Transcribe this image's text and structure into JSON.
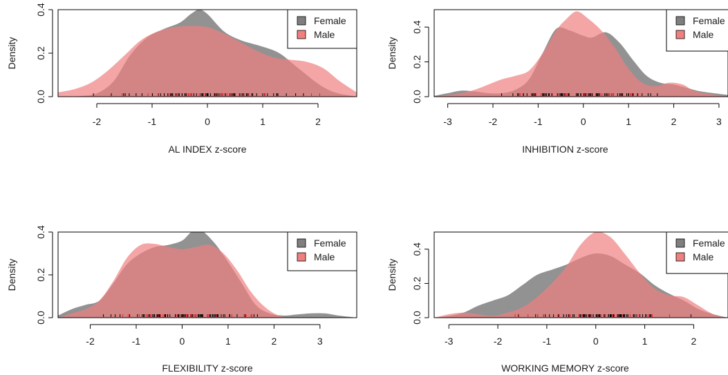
{
  "colors": {
    "female": "#7f7f7f",
    "male": "#f08080",
    "overlap": "#c0595c",
    "rug_female": "#000000",
    "rug_male": "#e8202a",
    "axis": "#000000"
  },
  "chart_data": [
    {
      "type": "area",
      "xlabel": "AL INDEX z-score",
      "ylabel": "Density",
      "xlim": [
        -2.7,
        2.7
      ],
      "ylim": [
        0,
        0.4
      ],
      "xticks": [
        "-2",
        "-1",
        "0",
        "1",
        "2"
      ],
      "yticks": [
        "0.0",
        "0.2",
        "0.4"
      ],
      "legend": {
        "placement": "top-right",
        "entries": [
          "Female",
          "Male"
        ]
      },
      "series": [
        {
          "name": "Female",
          "x": [
            -2.7,
            -2.3,
            -2.0,
            -1.7,
            -1.4,
            -1.1,
            -0.8,
            -0.5,
            -0.3,
            -0.15,
            0.0,
            0.3,
            0.6,
            1.0,
            1.3,
            1.6,
            2.0,
            2.3,
            2.7
          ],
          "values": [
            0.0,
            0.003,
            0.015,
            0.07,
            0.19,
            0.27,
            0.31,
            0.34,
            0.38,
            0.4,
            0.38,
            0.3,
            0.26,
            0.23,
            0.2,
            0.14,
            0.06,
            0.02,
            0.0
          ]
        },
        {
          "name": "Male",
          "x": [
            -2.7,
            -2.4,
            -2.1,
            -1.8,
            -1.5,
            -1.2,
            -0.9,
            -0.6,
            -0.3,
            0.0,
            0.3,
            0.6,
            0.9,
            1.2,
            1.5,
            1.8,
            2.1,
            2.4,
            2.7
          ],
          "values": [
            0.02,
            0.035,
            0.065,
            0.12,
            0.19,
            0.26,
            0.3,
            0.32,
            0.325,
            0.32,
            0.29,
            0.25,
            0.21,
            0.18,
            0.17,
            0.16,
            0.13,
            0.07,
            0.02
          ]
        }
      ]
    },
    {
      "type": "area",
      "xlabel": "INHIBITION z-score",
      "ylabel": "Density",
      "xlim": [
        -3.3,
        3.2
      ],
      "ylim": [
        0,
        0.5
      ],
      "xticks": [
        "-3",
        "-2",
        "-1",
        "0",
        "1",
        "2",
        "3"
      ],
      "yticks": [
        "0.0",
        "0.2",
        "0.4"
      ],
      "legend": {
        "placement": "top-right",
        "entries": [
          "Female",
          "Male"
        ]
      },
      "series": [
        {
          "name": "Female",
          "x": [
            -3.3,
            -3.0,
            -2.7,
            -2.4,
            -2.1,
            -1.8,
            -1.5,
            -1.2,
            -0.9,
            -0.6,
            -0.3,
            0.0,
            0.2,
            0.5,
            0.8,
            1.1,
            1.4,
            1.7,
            2.0,
            2.3,
            2.6,
            3.2
          ],
          "values": [
            0.005,
            0.02,
            0.035,
            0.03,
            0.02,
            0.02,
            0.04,
            0.1,
            0.25,
            0.39,
            0.38,
            0.35,
            0.34,
            0.37,
            0.31,
            0.21,
            0.12,
            0.08,
            0.07,
            0.05,
            0.03,
            0.01
          ]
        },
        {
          "name": "Male",
          "x": [
            -3.3,
            -3.0,
            -2.7,
            -2.4,
            -2.1,
            -1.8,
            -1.5,
            -1.2,
            -0.9,
            -0.6,
            -0.4,
            -0.15,
            0.1,
            0.4,
            0.7,
            1.0,
            1.3,
            1.6,
            1.9,
            2.2,
            2.5,
            3.2
          ],
          "values": [
            0.0,
            0.01,
            0.02,
            0.04,
            0.07,
            0.1,
            0.12,
            0.15,
            0.25,
            0.38,
            0.44,
            0.49,
            0.45,
            0.38,
            0.28,
            0.16,
            0.08,
            0.06,
            0.08,
            0.07,
            0.03,
            0.0
          ]
        }
      ]
    },
    {
      "type": "area",
      "xlabel": "FLEXIBILITY z-score",
      "ylabel": "Density",
      "xlim": [
        -2.7,
        3.8
      ],
      "ylim": [
        0,
        0.4
      ],
      "xticks": [
        "-2",
        "-1",
        "0",
        "1",
        "2",
        "3"
      ],
      "yticks": [
        "0.0",
        "0.2",
        "0.4"
      ],
      "legend": {
        "placement": "top-right",
        "entries": [
          "Female",
          "Male"
        ]
      },
      "series": [
        {
          "name": "Female",
          "x": [
            -2.7,
            -2.4,
            -2.1,
            -1.8,
            -1.5,
            -1.2,
            -0.9,
            -0.6,
            -0.3,
            0.0,
            0.2,
            0.4,
            0.7,
            1.0,
            1.3,
            1.6,
            1.9,
            2.2,
            2.5,
            2.8,
            3.1,
            3.4,
            3.8
          ],
          "values": [
            0.01,
            0.04,
            0.06,
            0.08,
            0.16,
            0.25,
            0.3,
            0.33,
            0.34,
            0.36,
            0.4,
            0.41,
            0.35,
            0.26,
            0.16,
            0.06,
            0.02,
            0.01,
            0.015,
            0.02,
            0.02,
            0.01,
            0.0
          ]
        },
        {
          "name": "Male",
          "x": [
            -2.7,
            -2.4,
            -2.1,
            -1.8,
            -1.5,
            -1.2,
            -0.9,
            -0.6,
            -0.3,
            0.0,
            0.3,
            0.6,
            0.9,
            1.2,
            1.5,
            1.8,
            2.1,
            2.4,
            2.7,
            3.8
          ],
          "values": [
            0.0,
            0.02,
            0.04,
            0.08,
            0.17,
            0.28,
            0.34,
            0.345,
            0.33,
            0.32,
            0.33,
            0.34,
            0.3,
            0.22,
            0.12,
            0.05,
            0.01,
            0.0,
            0.0,
            0.0
          ]
        }
      ]
    },
    {
      "type": "area",
      "xlabel": "WORKING MEMORY z-score",
      "ylabel": "Density",
      "xlim": [
        -3.3,
        2.7
      ],
      "ylim": [
        0,
        0.5
      ],
      "xticks": [
        "-3",
        "-2",
        "-1",
        "0",
        "1",
        "2"
      ],
      "yticks": [
        "0.0",
        "0.2",
        "0.4"
      ],
      "legend": {
        "placement": "top-right",
        "entries": [
          "Female",
          "Male"
        ]
      },
      "series": [
        {
          "name": "Female",
          "x": [
            -3.3,
            -3.0,
            -2.7,
            -2.4,
            -2.1,
            -1.8,
            -1.5,
            -1.2,
            -0.9,
            -0.6,
            -0.3,
            0.0,
            0.3,
            0.6,
            0.9,
            1.2,
            1.5,
            1.8,
            2.1,
            2.4,
            2.7
          ],
          "values": [
            0.0,
            0.01,
            0.03,
            0.07,
            0.1,
            0.13,
            0.19,
            0.25,
            0.28,
            0.31,
            0.35,
            0.375,
            0.36,
            0.31,
            0.26,
            0.19,
            0.14,
            0.1,
            0.05,
            0.02,
            0.0
          ]
        },
        {
          "name": "Male",
          "x": [
            -3.3,
            -3.0,
            -2.7,
            -2.4,
            -2.1,
            -1.8,
            -1.5,
            -1.2,
            -0.9,
            -0.6,
            -0.3,
            0.0,
            0.3,
            0.6,
            0.9,
            1.2,
            1.5,
            1.8,
            2.1,
            2.4,
            2.7
          ],
          "values": [
            0.0,
            0.02,
            0.03,
            0.02,
            0.01,
            0.03,
            0.06,
            0.12,
            0.2,
            0.3,
            0.43,
            0.5,
            0.47,
            0.37,
            0.26,
            0.17,
            0.13,
            0.12,
            0.07,
            0.02,
            0.0
          ]
        }
      ]
    }
  ]
}
